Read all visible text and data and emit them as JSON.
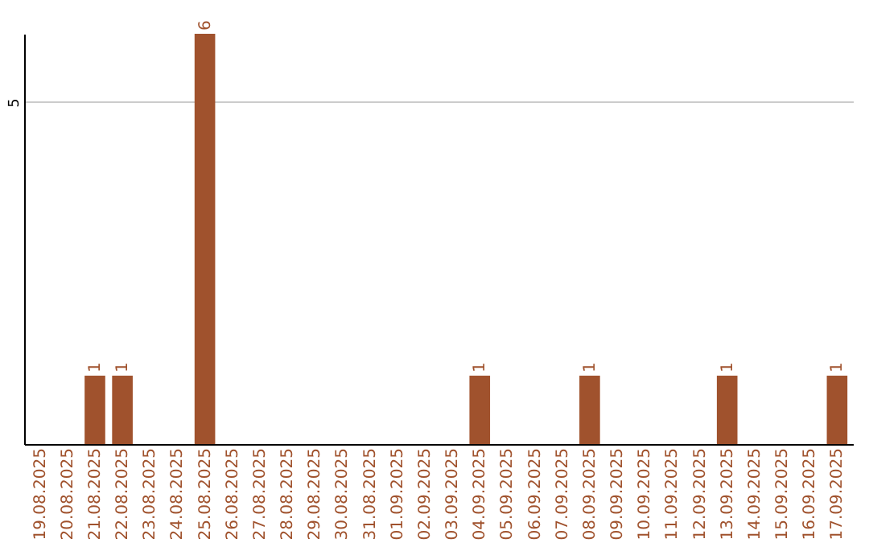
{
  "chart_data": {
    "type": "bar",
    "categories": [
      "19.08.2025",
      "20.08.2025",
      "21.08.2025",
      "22.08.2025",
      "23.08.2025",
      "24.08.2025",
      "25.08.2025",
      "26.08.2025",
      "27.08.2025",
      "28.08.2025",
      "29.08.2025",
      "30.08.2025",
      "31.08.2025",
      "01.09.2025",
      "02.09.2025",
      "03.09.2025",
      "04.09.2025",
      "05.09.2025",
      "06.09.2025",
      "07.09.2025",
      "08.09.2025",
      "09.09.2025",
      "10.09.2025",
      "11.09.2025",
      "12.09.2025",
      "13.09.2025",
      "14.09.2025",
      "15.09.2025",
      "16.09.2025",
      "17.09.2025"
    ],
    "values": [
      0,
      0,
      1,
      1,
      0,
      0,
      6,
      0,
      0,
      0,
      0,
      0,
      0,
      0,
      0,
      0,
      1,
      0,
      0,
      0,
      1,
      0,
      0,
      0,
      0,
      1,
      0,
      0,
      0,
      1
    ],
    "color": "#a0522d",
    "value_labels": [
      null,
      null,
      "1",
      "1",
      null,
      null,
      "6",
      null,
      null,
      null,
      null,
      null,
      null,
      null,
      null,
      null,
      "1",
      null,
      null,
      null,
      "1",
      null,
      null,
      null,
      null,
      "1",
      null,
      null,
      null,
      "1"
    ],
    "ylim": [
      0,
      6
    ],
    "yticks": [
      5
    ],
    "grid": "y"
  }
}
